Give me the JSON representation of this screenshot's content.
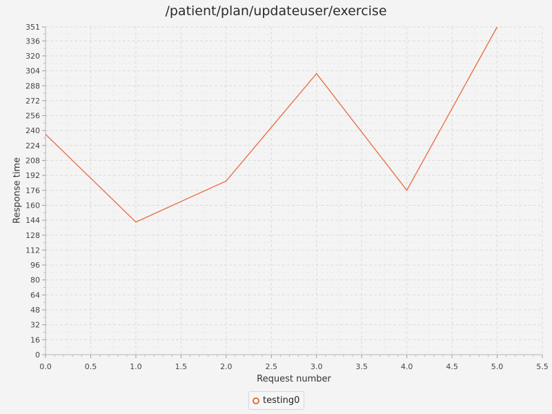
{
  "chart_data": {
    "type": "line",
    "title": "/patient/plan/updateuser/exercise",
    "xlabel": "Request number",
    "ylabel": "Response time",
    "xlim": [
      0.0,
      5.5
    ],
    "ylim": [
      0,
      351
    ],
    "x_ticks": [
      "0.0",
      "0.5",
      "1.0",
      "1.5",
      "2.0",
      "2.5",
      "3.0",
      "3.5",
      "4.0",
      "4.5",
      "5.0",
      "5.5"
    ],
    "y_ticks": [
      "0",
      "16",
      "32",
      "48",
      "64",
      "80",
      "96",
      "112",
      "128",
      "144",
      "160",
      "176",
      "192",
      "208",
      "224",
      "240",
      "256",
      "272",
      "288",
      "304",
      "320",
      "336",
      "351"
    ],
    "grid": true,
    "legend_position": "bottom",
    "series": [
      {
        "name": "testing0",
        "color": "#e8693c",
        "x": [
          0,
          1,
          2,
          3,
          4,
          5
        ],
        "y": [
          236,
          142,
          186,
          301,
          176,
          351
        ]
      }
    ]
  }
}
